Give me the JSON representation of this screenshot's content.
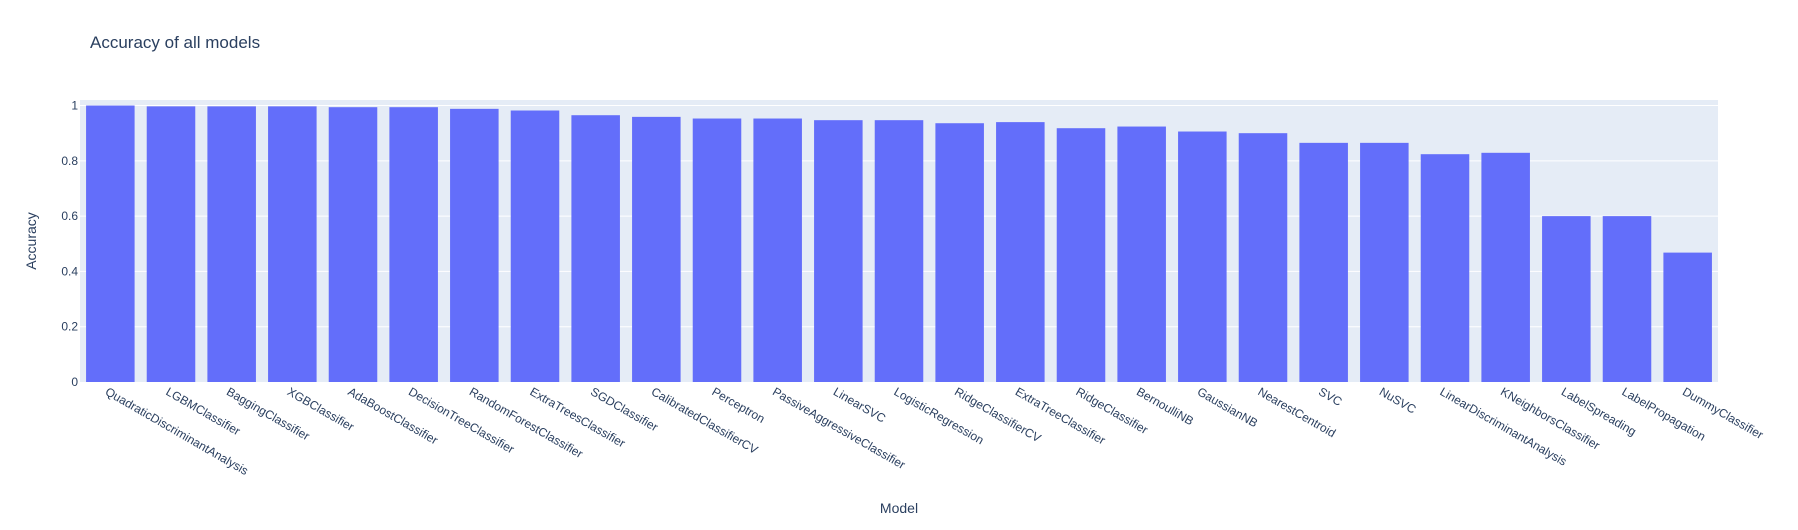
{
  "chart_data": {
    "type": "bar",
    "title": "Accuracy of all models",
    "xlabel": "Model",
    "ylabel": "Accuracy",
    "ylim": [
      0,
      1.02
    ],
    "yticks": [
      0,
      0.2,
      0.4,
      0.6,
      0.8,
      1
    ],
    "ytick_labels": [
      "0",
      "0.2",
      "0.4",
      "0.6",
      "0.8",
      "1"
    ],
    "grid": true,
    "legend": "none",
    "colors": {
      "bar": "#636efa",
      "plot_bg": "#e5ecf6",
      "grid": "#ffffff",
      "text": "#2a3f5f"
    },
    "categories": [
      "QuadraticDiscriminantAnalysis",
      "LGBMClassifier",
      "BaggingClassifier",
      "XGBClassifier",
      "AdaBoostClassifier",
      "DecisionTreeClassifier",
      "RandomForestClassifier",
      "ExtraTreesClassifier",
      "SGDClassifier",
      "CalibratedClassifierCV",
      "Perceptron",
      "PassiveAggressiveClassifier",
      "LinearSVC",
      "LogisticRegression",
      "RidgeClassifierCV",
      "ExtraTreeClassifier",
      "RidgeClassifier",
      "BernoulliNB",
      "GaussianNB",
      "NearestCentroid",
      "SVC",
      "NuSVC",
      "LinearDiscriminantAnalysis",
      "KNeighborsClassifier",
      "LabelSpreading",
      "LabelPropagation",
      "DummyClassifier"
    ],
    "values": [
      1.0,
      0.997,
      0.997,
      0.997,
      0.994,
      0.994,
      0.988,
      0.982,
      0.965,
      0.959,
      0.953,
      0.953,
      0.947,
      0.947,
      0.936,
      0.94,
      0.918,
      0.924,
      0.906,
      0.9,
      0.865,
      0.865,
      0.824,
      0.829,
      0.6,
      0.6,
      0.468
    ]
  }
}
